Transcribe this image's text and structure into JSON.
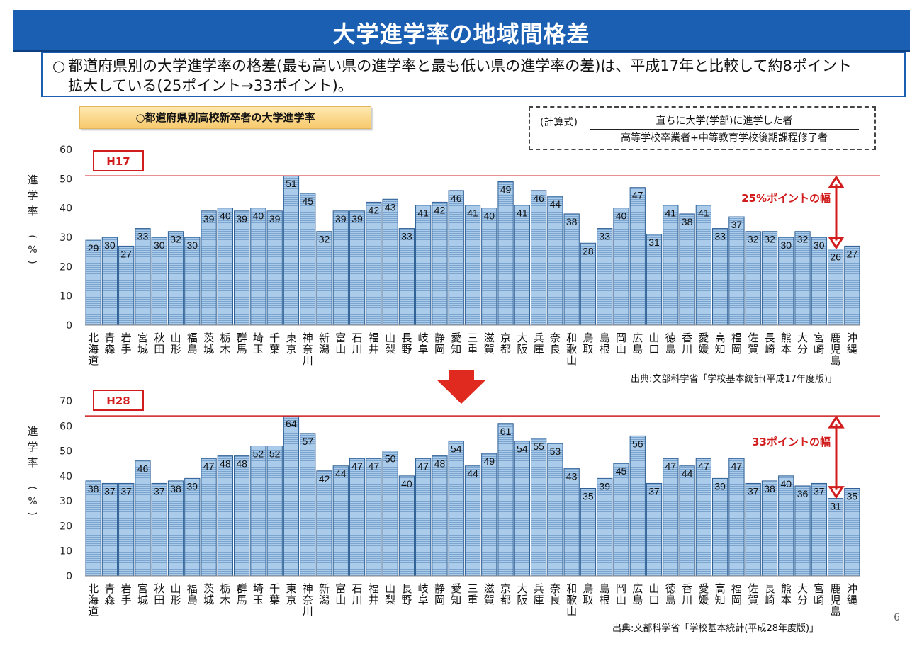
{
  "header": {
    "title": "大学進学率の地域間格差"
  },
  "summary": {
    "bullet": "○",
    "line1": "都道府県別の大学進学率の格差(最も高い県の進学率と最も低い県の進学率の差)は、平成17年と比較して約8ポイント",
    "line2": "拡大している(25ポイント→33ポイント)。"
  },
  "subtitle": "○都道府県別高校新卒者の大学進学率",
  "formula": {
    "label": "(計算式)",
    "numerator": "直ちに大学(学部)に進学した者",
    "denominator": "高等学校卒業者+中等教育学校後期課程修了者"
  },
  "page_number": "6",
  "ylabel_text": "進学率",
  "ylabel_unit": "(%)",
  "chart_data": [
    {
      "type": "bar",
      "title": "H17",
      "ylim": [
        0,
        60
      ],
      "ticks": [
        0,
        10,
        20,
        30,
        40,
        50,
        60
      ],
      "ylabel": "進学率(%)",
      "categories": [
        "北海道",
        "青森",
        "岩手",
        "宮城",
        "秋田",
        "山形",
        "福島",
        "茨城",
        "栃木",
        "群馬",
        "埼玉",
        "千葉",
        "東京",
        "神奈川",
        "新潟",
        "富山",
        "石川",
        "福井",
        "山梨",
        "長野",
        "岐阜",
        "静岡",
        "愛知",
        "三重",
        "滋賀",
        "京都",
        "大阪",
        "兵庫",
        "奈良",
        "和歌山",
        "鳥取",
        "島根",
        "岡山",
        "広島",
        "山口",
        "徳島",
        "香川",
        "愛媛",
        "高知",
        "福岡",
        "佐賀",
        "長崎",
        "熊本",
        "大分",
        "宮崎",
        "鹿児島",
        "沖縄"
      ],
      "values": [
        29,
        30,
        27,
        33,
        30,
        32,
        30,
        39,
        40,
        39,
        40,
        39,
        51,
        45,
        32,
        39,
        39,
        42,
        43,
        33,
        41,
        42,
        46,
        41,
        40,
        49,
        41,
        46,
        44,
        38,
        28,
        33,
        40,
        47,
        31,
        41,
        38,
        41,
        33,
        37,
        32,
        32,
        30,
        32,
        30,
        26,
        27
      ],
      "max_line": 51,
      "gap_label": "25%ポイントの幅",
      "source": "出典:文部科学省「学校基本統計(平成17年度版)」"
    },
    {
      "type": "bar",
      "title": "H28",
      "ylim": [
        0,
        70
      ],
      "ticks": [
        0,
        10,
        20,
        30,
        40,
        50,
        60,
        70
      ],
      "ylabel": "進学率(%)",
      "categories": [
        "北海道",
        "青森",
        "岩手",
        "宮城",
        "秋田",
        "山形",
        "福島",
        "茨城",
        "栃木",
        "群馬",
        "埼玉",
        "千葉",
        "東京",
        "神奈川",
        "新潟",
        "富山",
        "石川",
        "福井",
        "山梨",
        "長野",
        "岐阜",
        "静岡",
        "愛知",
        "三重",
        "滋賀",
        "京都",
        "大阪",
        "兵庫",
        "奈良",
        "和歌山",
        "鳥取",
        "島根",
        "岡山",
        "広島",
        "山口",
        "徳島",
        "香川",
        "愛媛",
        "高知",
        "福岡",
        "佐賀",
        "長崎",
        "熊本",
        "大分",
        "宮崎",
        "鹿児島",
        "沖縄"
      ],
      "values": [
        38,
        37,
        37,
        46,
        37,
        38,
        39,
        47,
        48,
        48,
        52,
        52,
        64,
        57,
        42,
        44,
        47,
        47,
        50,
        40,
        47,
        48,
        54,
        44,
        49,
        61,
        54,
        55,
        53,
        43,
        35,
        39,
        45,
        56,
        37,
        47,
        44,
        47,
        39,
        47,
        37,
        38,
        40,
        36,
        37,
        31,
        35
      ],
      "max_line": 64,
      "gap_label": "33ポイントの幅",
      "source": "出典:文部科学省「学校基本統計(平成28年度版)」"
    }
  ],
  "colors": {
    "banner": "#1b5fb3",
    "bar_fill": "#aacbea",
    "bar_stroke": "#2d5f95",
    "max_line": "#d11d1d",
    "accent_red": "#d11d1d"
  }
}
